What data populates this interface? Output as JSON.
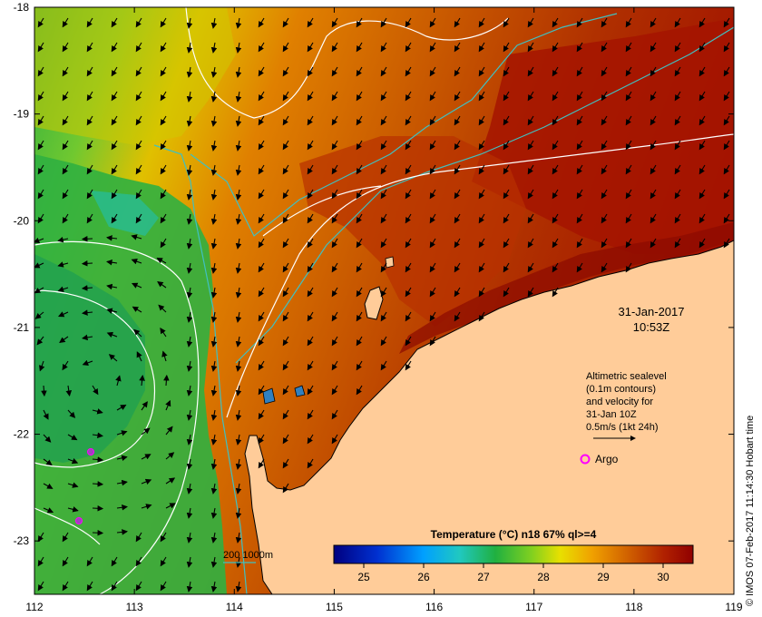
{
  "map": {
    "lon_ticks": [
      "112",
      "113",
      "114",
      "115",
      "116",
      "117",
      "118",
      "119"
    ],
    "lat_ticks": [
      "-18",
      "-19",
      "-20",
      "-21",
      "-22",
      "-23"
    ],
    "lon_range": [
      112,
      119
    ],
    "lat_range": [
      -23.5,
      -18
    ]
  },
  "timestamp": {
    "date": "31-Jan-2017",
    "time": "10:53Z"
  },
  "altimetry_note": {
    "line1": "Altimetric sealevel",
    "line2": "(0.1m contours)",
    "line3": "and velocity for",
    "line4": "31-Jan 10Z",
    "line5": "0.5m/s (1kt 24h)"
  },
  "argo": {
    "label": "Argo",
    "color": "#ff00ff"
  },
  "isobath_legend": {
    "label": "200  1000m",
    "color": "#40c0c0"
  },
  "colorbar": {
    "title": "Temperature (°C) n18 67% ql>=4",
    "ticks": [
      "25",
      "26",
      "27",
      "28",
      "29",
      "30"
    ],
    "min": 24.5,
    "max": 30.5
  },
  "credit": "© IMOS 07-Feb-2017 11:14:30 Hobart time",
  "colors": {
    "land": "#ffcc99",
    "warm": "#a01000",
    "cool": "#20b040"
  }
}
